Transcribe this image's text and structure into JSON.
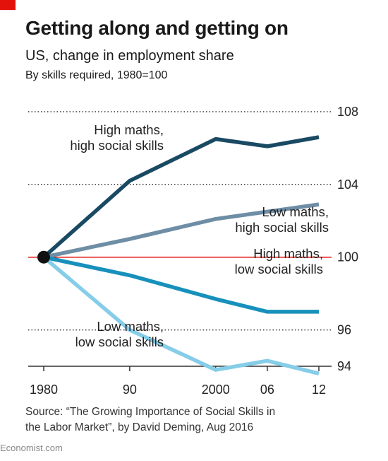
{
  "header": {
    "title": "Getting along and getting on",
    "subtitle": "US, change in employment share",
    "subsubtitle": "By skills required, 1980=100"
  },
  "chart_data": {
    "type": "line",
    "x": [
      1980,
      1990,
      2000,
      2006,
      2012
    ],
    "x_tick_labels": [
      "1980",
      "90",
      "2000",
      "06",
      "12"
    ],
    "ylim": [
      94,
      108
    ],
    "y_ticks": [
      94,
      96,
      100,
      104,
      108
    ],
    "y_tick_labels": [
      "94",
      "96",
      "100",
      "104",
      "108"
    ],
    "baseline": 100,
    "grid": "dotted",
    "series": [
      {
        "name": "High maths, high social skills",
        "label_lines": [
          "High maths,",
          "high social skills"
        ],
        "color": "#1a4a63",
        "values": [
          100,
          104.2,
          106.5,
          106.1,
          106.6
        ]
      },
      {
        "name": "Low maths, high social skills",
        "label_lines": [
          "Low maths,",
          "high social skills"
        ],
        "color": "#6e8ea5",
        "values": [
          100,
          101.0,
          102.1,
          102.5,
          102.9
        ]
      },
      {
        "name": "High maths, low social skills",
        "label_lines": [
          "High maths,",
          "low social skills"
        ],
        "color": "#1790bc",
        "values": [
          100,
          99.0,
          97.7,
          97.0,
          97.0
        ]
      },
      {
        "name": "Low maths, low social skills",
        "label_lines": [
          "Low maths,",
          "low social skills"
        ],
        "color": "#85cde8",
        "values": [
          100,
          96.0,
          93.8,
          94.3,
          93.6
        ]
      }
    ],
    "baseline_color": "#e3120b"
  },
  "source": {
    "line1": "Source: “The Growing Importance of Social Skills in",
    "line2": "the Labor Market”, by David Deming, Aug 2016"
  },
  "credit": "Economist.com"
}
